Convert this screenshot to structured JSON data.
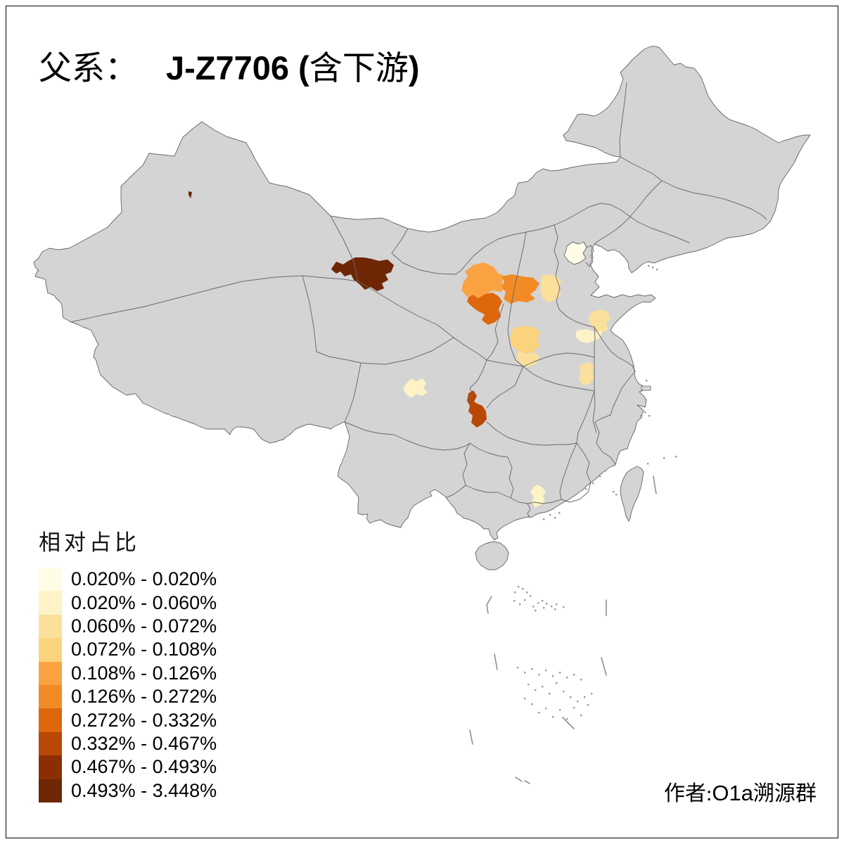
{
  "title": {
    "p1": "父系：",
    "p2": "J-Z7706 (",
    "p3": "含下游",
    "p4": ")"
  },
  "legend": {
    "title": "相对占比",
    "classes": [
      {
        "label": "0.020% - 0.020%",
        "color": "#fffde6"
      },
      {
        "label": "0.020% - 0.060%",
        "color": "#fdf3c6"
      },
      {
        "label": "0.060% - 0.072%",
        "color": "#fbe09b"
      },
      {
        "label": "0.072% - 0.108%",
        "color": "#fbd37c"
      },
      {
        "label": "0.108% - 0.126%",
        "color": "#fba343"
      },
      {
        "label": "0.126% - 0.272%",
        "color": "#f28b26"
      },
      {
        "label": "0.272% - 0.332%",
        "color": "#de660c"
      },
      {
        "label": "0.332% - 0.467%",
        "color": "#b94806"
      },
      {
        "label": "0.467% - 0.493%",
        "color": "#8c2e03"
      },
      {
        "label": "0.493% - 3.448%",
        "color": "#6e2604"
      }
    ]
  },
  "author": {
    "a1": "作者:",
    "a2": "O1a",
    "a3": "溯源群"
  },
  "map": {
    "base_color": "#d4d4d4",
    "border_color": "#696969",
    "water_color": "#ffffff",
    "regions": {
      "hami-speck": 9,
      "hexi-corridor": 9,
      "lanzhou-baiyin": 4,
      "ningxia": 5,
      "dingxi-tianshui": 6,
      "shanxi-north": 2,
      "beijing": 0,
      "linfen": 3,
      "yuncheng": 2,
      "shandong-west": 2,
      "henan-north": 1,
      "henan-east": 2,
      "chengdu": 1,
      "chongqing-east": 7,
      "guangzhou": 1
    }
  }
}
